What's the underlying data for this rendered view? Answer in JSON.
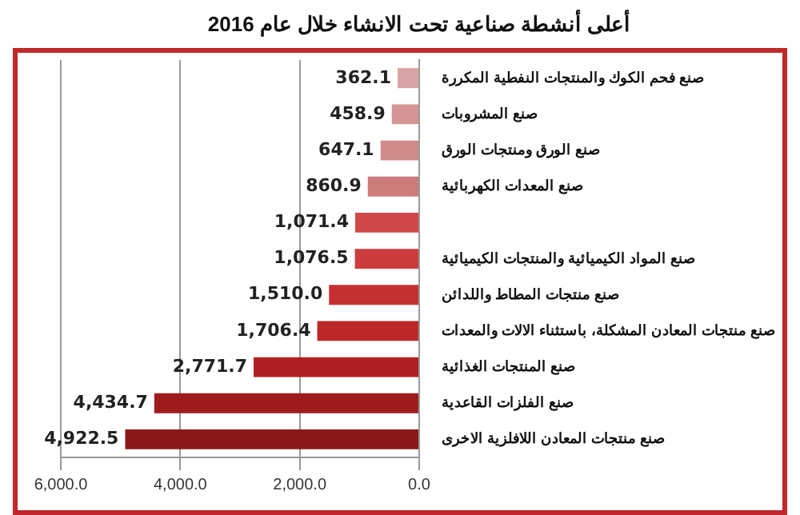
{
  "chart_data": {
    "type": "bar",
    "orientation": "horizontal",
    "title": "أعلى أنشطة صناعية تحت الانشاء خلال عام 2016",
    "categories": [
      "صنع فحم الكوك والمنتجات النفطية المكررة",
      "صنع المشروبات",
      "صنع الورق ومنتجات الورق",
      "صنع المعدات الكهربائية",
      null,
      "صنع المواد الكيميائية والمنتجات الكيميائية",
      "صنع منتجات المطاط واللدائن",
      "صنع منتجات المعادن المشكلة، باستثناء الالات والمعدات",
      "صنع المنتجات الغذائية",
      "صنع الفلزات القاعدية",
      "صنع منتجات المعادن اللافلزية الاخرى"
    ],
    "values": [
      362.1,
      458.9,
      647.1,
      860.9,
      1071.4,
      1076.5,
      1510.0,
      1706.4,
      2771.7,
      4434.7,
      4922.5
    ],
    "value_labels": [
      "362.1",
      "458.9",
      "647.1",
      "860.9",
      "1,071.4",
      "1,076.5",
      "1,510.0",
      "1,706.4",
      "2,771.7",
      "4,434.7",
      "4,922.5"
    ],
    "colors": [
      "#d8a3a3",
      "#d49595",
      "#d08a8a",
      "#cc7b7b",
      "#d04848",
      "#cc3c3c",
      "#c43030",
      "#bc2828",
      "#b02020",
      "#a01c1c",
      "#8c1818"
    ],
    "xlim": [
      6000,
      0
    ],
    "xticks": [
      {
        "value": 6000,
        "label": "6,000.0"
      },
      {
        "value": 4000,
        "label": "4,000.0"
      },
      {
        "value": 2000,
        "label": "2,000.0"
      },
      {
        "value": 0,
        "label": "0.0"
      }
    ],
    "grid": "x",
    "legend": false
  }
}
